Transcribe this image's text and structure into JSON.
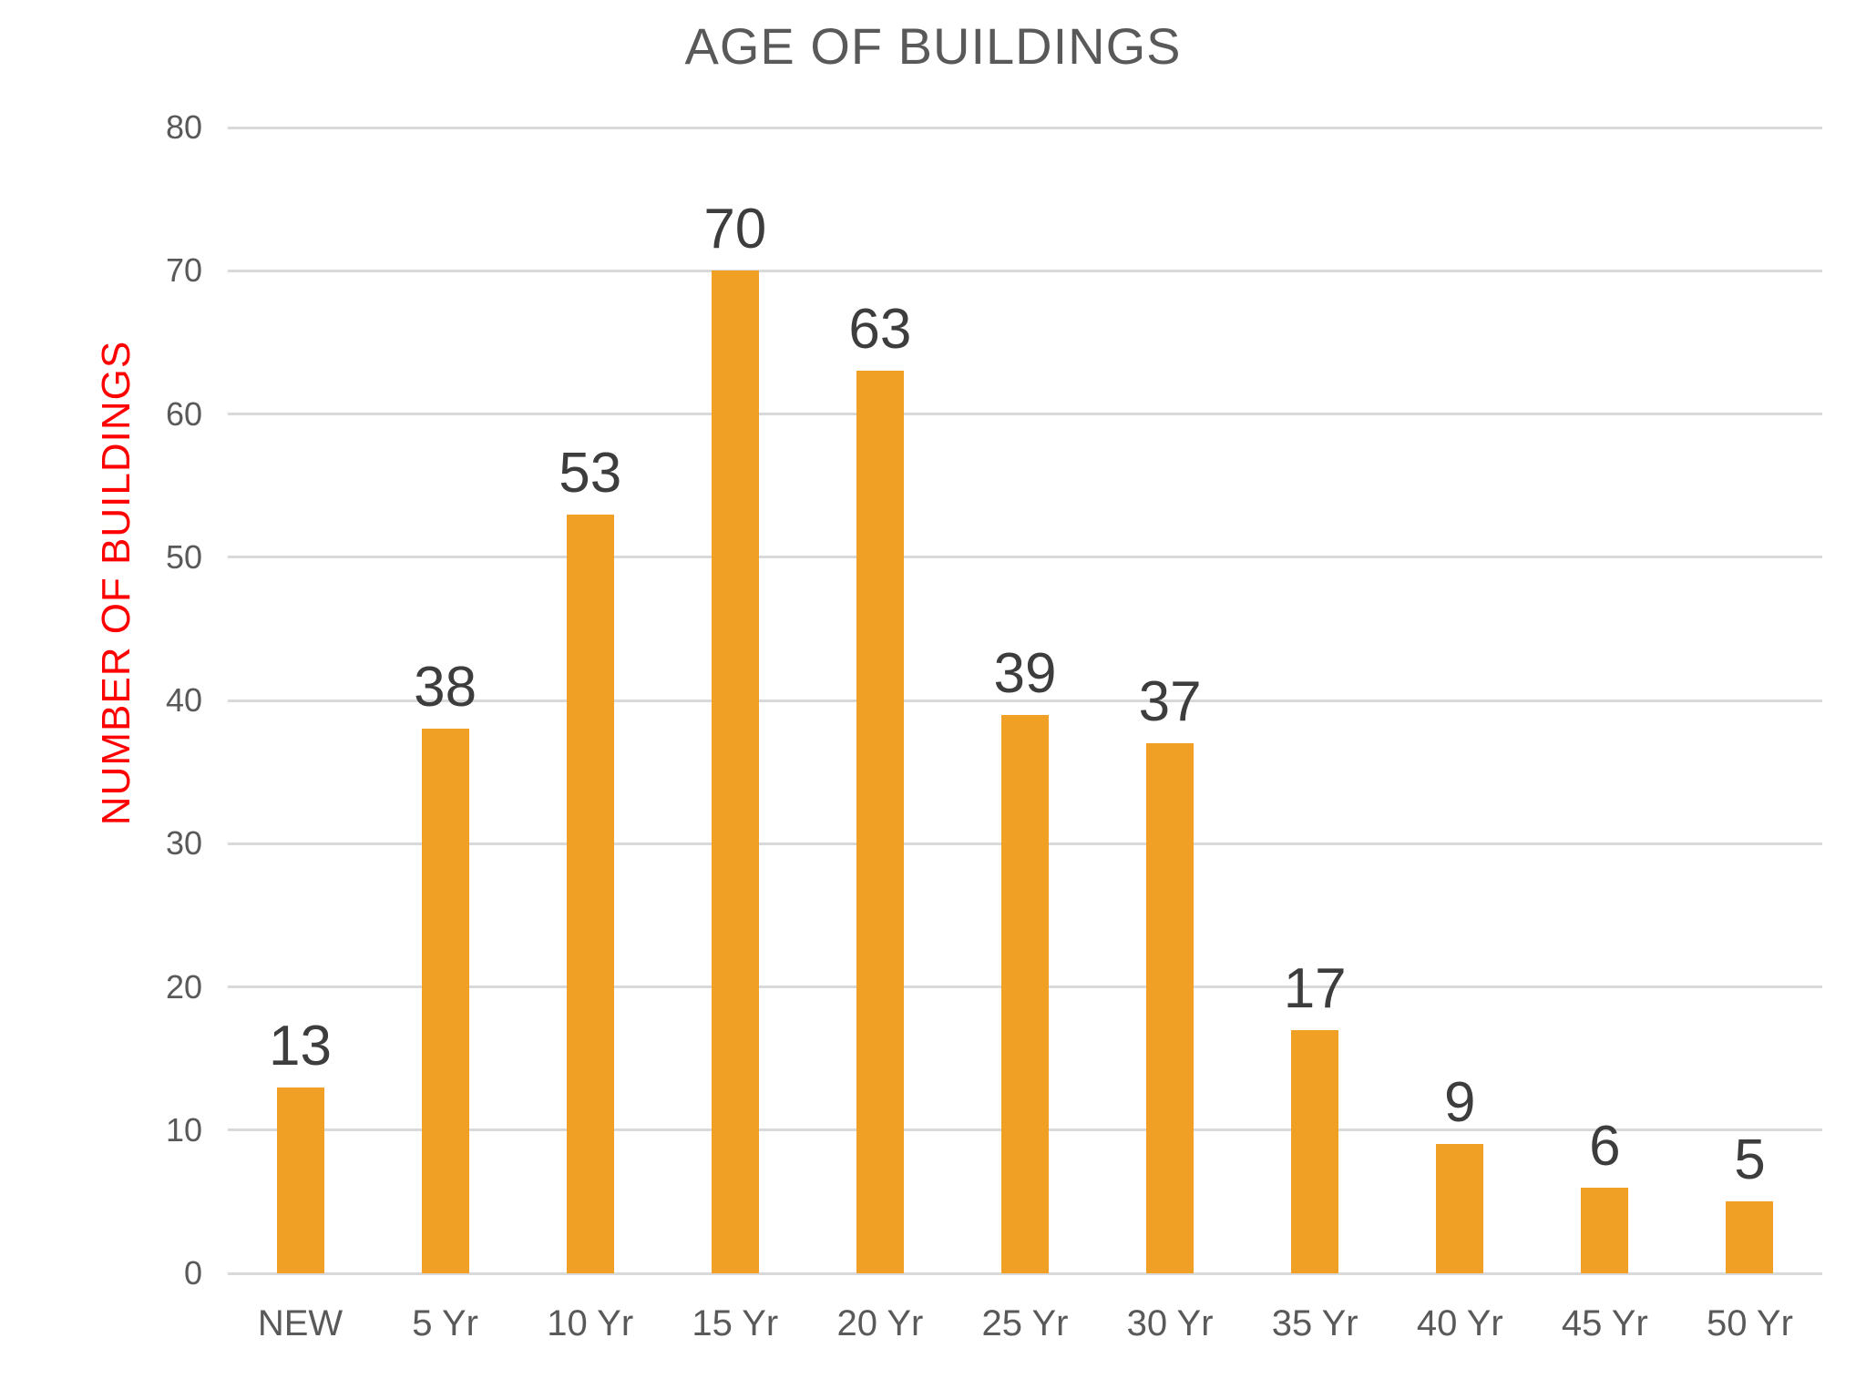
{
  "chart_data": {
    "type": "bar",
    "title": "AGE OF BUILDINGS",
    "xlabel": "",
    "ylabel": "NUMBER OF BUILDINGS",
    "categories": [
      "NEW",
      "5 Yr",
      "10 Yr",
      "15 Yr",
      "20 Yr",
      "25 Yr",
      "30 Yr",
      "35 Yr",
      "40 Yr",
      "45 Yr",
      "50 Yr"
    ],
    "values": [
      13,
      38,
      53,
      70,
      63,
      39,
      37,
      17,
      9,
      6,
      5
    ],
    "ylim": [
      0,
      80
    ],
    "ytick_step": 10,
    "yticks": [
      0,
      10,
      20,
      30,
      40,
      50,
      60,
      70,
      80
    ],
    "grid": true,
    "legend": "none",
    "colors": {
      "bar": "#F0A125",
      "value_label": "#3D3D3D",
      "title": "#595959",
      "axis_text": "#595959",
      "ylabel_text": "#FF0000",
      "gridline": "#D9D9D9",
      "background": "#FFFFFF"
    }
  }
}
